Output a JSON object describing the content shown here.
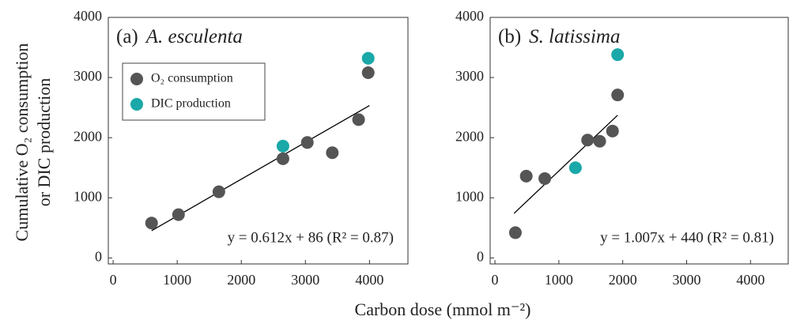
{
  "ylabel": [
    "Cumulative O₂ consumption",
    "or DIC production"
  ],
  "xlabel": "Carbon dose (mmol m⁻²)",
  "chart_data": [
    {
      "type": "scatter",
      "panel_label": "(a)",
      "title": "A. esculenta",
      "xlim": [
        -75,
        4600
      ],
      "xticks": [
        0,
        1000,
        2000,
        3000,
        4000
      ],
      "ylim": [
        -100,
        4000
      ],
      "yticks": [
        0,
        1000,
        2000,
        3000,
        4000
      ],
      "legend": "upper left",
      "series": [
        {
          "name": "O₂ consumption",
          "color": "#555555",
          "x": [
            600,
            1020,
            1650,
            2650,
            3030,
            3420,
            3830,
            3980
          ],
          "values": [
            580,
            720,
            1100,
            1650,
            1920,
            1750,
            2300,
            3080
          ]
        },
        {
          "name": "DIC production",
          "color": "#1aa8a8",
          "x": [
            2650,
            3980
          ],
          "values": [
            1860,
            3320
          ]
        }
      ],
      "fit_line": {
        "x": [
          600,
          4000
        ],
        "y": [
          453,
          2534
        ]
      },
      "annotation": "y = 0.612x + 86 (R² = 0.87)"
    },
    {
      "type": "scatter",
      "panel_label": "(b)",
      "title": "S. latissima",
      "xlim": [
        -75,
        4590
      ],
      "xticks": [
        0,
        1000,
        2000,
        3000,
        4000
      ],
      "ylim": [
        -100,
        4000
      ],
      "yticks": [
        0,
        1000,
        2000,
        3000,
        4000
      ],
      "series": [
        {
          "color": "#555555",
          "x": [
            320,
            490,
            780,
            1450,
            1640,
            1840,
            1920
          ],
          "values": [
            420,
            1360,
            1320,
            1960,
            1940,
            2110,
            2710
          ]
        },
        {
          "color": "#1aa8a8",
          "x": [
            1260,
            1920
          ],
          "values": [
            1500,
            3380
          ]
        }
      ],
      "fit_line": {
        "x": [
          300,
          1920
        ],
        "y": [
          742,
          2373
        ]
      },
      "annotation": "y = 1.007x + 440 (R² = 0.81)"
    }
  ]
}
